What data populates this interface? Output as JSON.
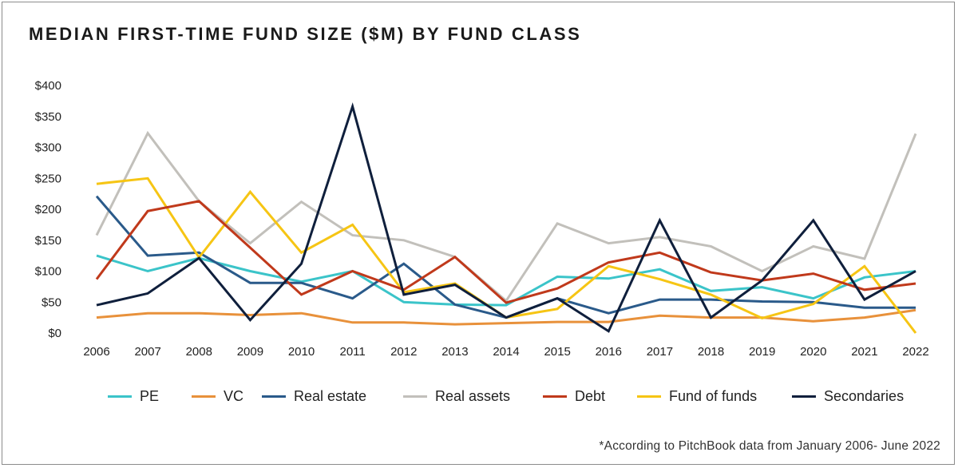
{
  "colors": {
    "PE": "#3bc4c9",
    "VC": "#e8913b",
    "Real estate": "#2a5a8a",
    "Real assets": "#c2c0bb",
    "Debt": "#c0391b",
    "Fund of funds": "#f6c514",
    "Secondaries": "#0f1f3c"
  },
  "chart_data": {
    "type": "line",
    "title": "MEDIAN FIRST-TIME FUND SIZE ($M) BY FUND CLASS",
    "xlabel": "",
    "ylabel": "",
    "ylim": [
      0,
      400
    ],
    "y_ticks": [
      "$0",
      "$50",
      "$100",
      "$150",
      "$200",
      "$250",
      "$300",
      "$350",
      "$400"
    ],
    "y_tick_values": [
      0,
      50,
      100,
      150,
      200,
      250,
      300,
      350,
      400
    ],
    "categories": [
      "2006",
      "2007",
      "2008",
      "2009",
      "2010",
      "2011",
      "2012",
      "2013",
      "2014",
      "2015",
      "2016",
      "2017",
      "2018",
      "2019",
      "2020",
      "2021",
      "2022"
    ],
    "grid": false,
    "legend_position": "bottom",
    "series": [
      {
        "name": "Real assets",
        "values": [
          158,
          323,
          213,
          145,
          212,
          158,
          150,
          123,
          52,
          177,
          145,
          155,
          140,
          100,
          140,
          120,
          322
        ]
      },
      {
        "name": "VC",
        "values": [
          25,
          32,
          32,
          29,
          32,
          17,
          17,
          14,
          16,
          18,
          18,
          28,
          25,
          25,
          19,
          25,
          37
        ]
      },
      {
        "name": "PE",
        "values": [
          125,
          100,
          121,
          100,
          83,
          100,
          50,
          46,
          45,
          91,
          88,
          103,
          68,
          74,
          56,
          90,
          100
        ]
      },
      {
        "name": "Real estate",
        "values": [
          221,
          125,
          130,
          81,
          81,
          56,
          112,
          46,
          25,
          56,
          32,
          54,
          54,
          51,
          50,
          41,
          41
        ]
      },
      {
        "name": "Fund of funds",
        "values": [
          241,
          250,
          122,
          228,
          130,
          175,
          66,
          80,
          25,
          39,
          108,
          87,
          62,
          24,
          47,
          108,
          0
        ]
      },
      {
        "name": "Debt",
        "values": [
          87,
          197,
          213,
          138,
          62,
          100,
          70,
          123,
          49,
          72,
          114,
          130,
          98,
          85,
          96,
          70,
          80
        ]
      },
      {
        "name": "Secondaries",
        "values": [
          45,
          64,
          121,
          21,
          112,
          366,
          62,
          78,
          25,
          56,
          3,
          182,
          25,
          85,
          182,
          54,
          100
        ]
      }
    ]
  },
  "legend": {
    "items": [
      "PE",
      "VC",
      "Real estate",
      "Real assets",
      "Debt",
      "Fund of funds",
      "Secondaries"
    ]
  },
  "footnote": "*According to PitchBook data from January 2006- June 2022"
}
